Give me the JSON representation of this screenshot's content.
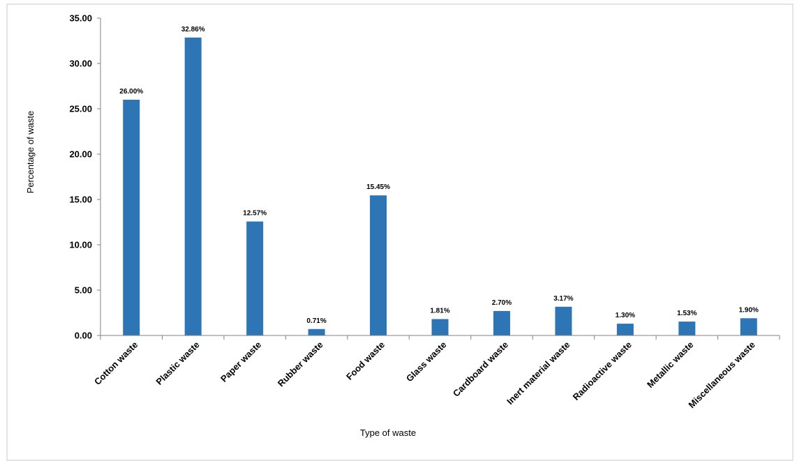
{
  "colors": {
    "bar": "#2e75b6",
    "axis": "#808080",
    "frame": "#c8c8c8"
  },
  "chart_data": {
    "type": "bar",
    "title": "",
    "xlabel": "Type of waste",
    "ylabel": "Percentage of waste",
    "ylim": [
      0,
      35
    ],
    "yticks": [
      "0.00",
      "5.00",
      "10.00",
      "15.00",
      "20.00",
      "25.00",
      "30.00",
      "35.00"
    ],
    "grid": false,
    "legend": "none",
    "categories": [
      "Cotton waste",
      "Plastic waste",
      "Paper waste",
      "Rubber waste",
      "Food waste",
      "Glass waste",
      "Cardboard waste",
      "Inert material waste",
      "Radioactive waste",
      "Metallic waste",
      "Miscellaneous waste"
    ],
    "values": [
      26.0,
      32.86,
      12.57,
      0.71,
      15.45,
      1.81,
      2.7,
      3.17,
      1.3,
      1.53,
      1.9
    ],
    "data_labels": [
      "26.00%",
      "32.86%",
      "12.57%",
      "0.71%",
      "15.45%",
      "1.81%",
      "2.70%",
      "3.17%",
      "1.30%",
      "1.53%",
      "1.90%"
    ]
  }
}
